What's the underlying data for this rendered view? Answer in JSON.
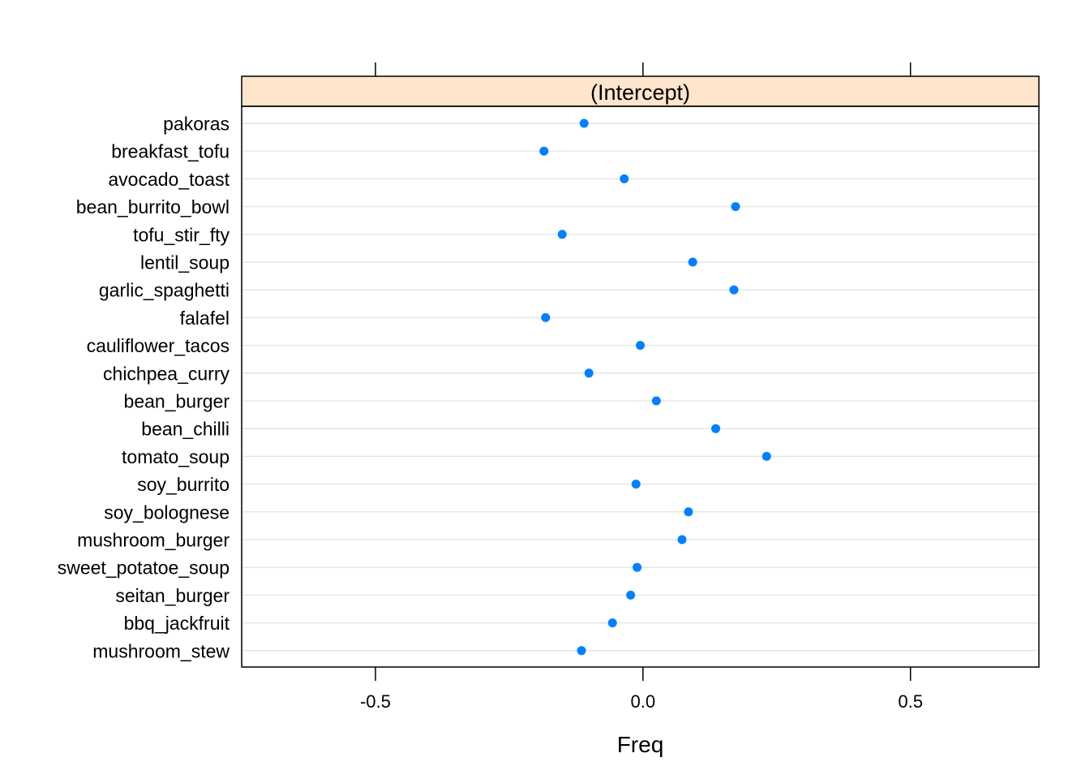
{
  "chart_data": {
    "type": "scatter",
    "panel": "(Intercept)",
    "xlabel": "Freq",
    "ylabel": "",
    "xlim": [
      -0.75,
      0.74
    ],
    "xticks": [
      -0.5,
      0.0,
      0.5
    ],
    "xtick_labels": [
      "-0.5",
      "0.0",
      "0.5"
    ],
    "grid": true,
    "categories": [
      "pakoras",
      "breakfast_tofu",
      "avocado_toast",
      "bean_burrito_bowl",
      "tofu_stir_fty",
      "lentil_soup",
      "garlic_spaghetti",
      "falafel",
      "cauliflower_tacos",
      "chichpea_curry",
      "bean_burger",
      "bean_chilli",
      "tomato_soup",
      "soy_burrito",
      "soy_bolognese",
      "mushroom_burger",
      "sweet_potatoe_soup",
      "seitan_burger",
      "bbq_jackfruit",
      "mushroom_stew"
    ],
    "values": [
      -0.11,
      -0.185,
      -0.035,
      0.173,
      -0.151,
      0.093,
      0.17,
      -0.182,
      -0.005,
      -0.101,
      0.025,
      0.136,
      0.231,
      -0.013,
      0.085,
      0.073,
      -0.011,
      -0.023,
      -0.057,
      -0.115
    ],
    "colors": {
      "point": "#0080ff",
      "strip": "#ffe5cc",
      "grid": "#e6e6e6",
      "frame": "#000000"
    }
  }
}
